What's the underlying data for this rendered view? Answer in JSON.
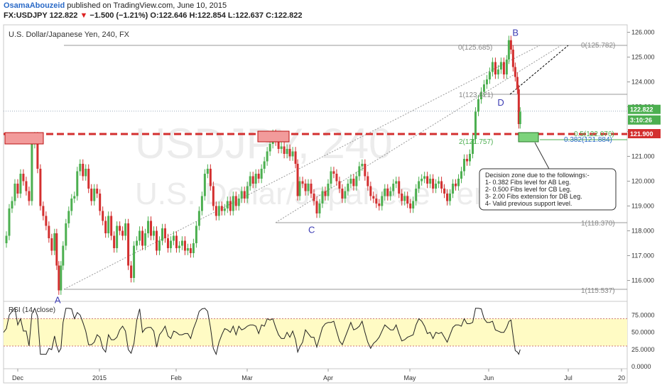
{
  "header": {
    "author": "OsamaAbouzeid",
    "published_text": "published on TradingView.com, June 10, 2015",
    "symbol": "FX:USDJPY",
    "last": "122.822",
    "change": "−1.500 (−1.21%)",
    "ohlc": {
      "o": "O:122.646",
      "h": "H:122.854",
      "l": "L:122.637",
      "c": "C:122.822"
    }
  },
  "chart_data": {
    "type": "line",
    "title": "U.S. Dollar/Japanese Yen, 240, FX",
    "watermark_symbol": "USDJPY, 240",
    "watermark_name": "U.S. Dollar/Japanese Yen",
    "xlabel": "",
    "ylabel": "",
    "price_axis": {
      "ticks": [
        "126.000",
        "125.000",
        "124.000",
        "123.000",
        "122.000",
        "121.000",
        "120.000",
        "119.000",
        "118.000",
        "117.000",
        "116.000"
      ],
      "ylim": [
        115.3,
        126.3
      ]
    },
    "time_axis": [
      "Dec",
      "2015",
      "Feb",
      "Mar",
      "Apr",
      "May",
      "Jun",
      "Jul",
      "20"
    ],
    "price_path": [
      [
        0,
        117.5
      ],
      [
        4,
        117.8
      ],
      [
        8,
        118.9
      ],
      [
        12,
        119.2
      ],
      [
        16,
        119.9
      ],
      [
        20,
        119.5
      ],
      [
        24,
        120.3
      ],
      [
        28,
        120.0
      ],
      [
        32,
        119.6
      ],
      [
        36,
        119.2
      ],
      [
        40,
        121.5
      ],
      [
        44,
        121.8
      ],
      [
        48,
        120.5
      ],
      [
        52,
        119.0
      ],
      [
        56,
        118.6
      ],
      [
        60,
        118.2
      ],
      [
        64,
        117.7
      ],
      [
        68,
        117.2
      ],
      [
        72,
        117.9
      ],
      [
        75,
        116.6
      ],
      [
        78,
        115.6
      ],
      [
        81,
        116.6
      ],
      [
        84,
        117.4
      ],
      [
        88,
        118.3
      ],
      [
        92,
        118.8
      ],
      [
        96,
        119.3
      ],
      [
        100,
        119.4
      ],
      [
        104,
        120.4
      ],
      [
        108,
        120.7
      ],
      [
        112,
        120.2
      ],
      [
        116,
        120.5
      ],
      [
        120,
        119.7
      ],
      [
        124,
        119.2
      ],
      [
        128,
        119.7
      ],
      [
        132,
        119.5
      ],
      [
        136,
        118.8
      ],
      [
        140,
        118.4
      ],
      [
        144,
        117.9
      ],
      [
        148,
        118.6
      ],
      [
        152,
        117.8
      ],
      [
        156,
        117.3
      ],
      [
        160,
        118.2
      ],
      [
        164,
        118.0
      ],
      [
        168,
        117.8
      ],
      [
        172,
        118.3
      ],
      [
        176,
        116.6
      ],
      [
        180,
        116.1
      ],
      [
        184,
        117.4
      ],
      [
        188,
        117.6
      ],
      [
        192,
        118.0
      ],
      [
        196,
        117.4
      ],
      [
        200,
        117.9
      ],
      [
        204,
        118.4
      ],
      [
        208,
        117.8
      ],
      [
        212,
        118.0
      ],
      [
        216,
        117.2
      ],
      [
        220,
        117.6
      ],
      [
        224,
        118.1
      ],
      [
        228,
        117.7
      ],
      [
        232,
        117.3
      ],
      [
        236,
        117.6
      ],
      [
        240,
        117.8
      ],
      [
        244,
        117.3
      ],
      [
        248,
        117.4
      ],
      [
        252,
        117.6
      ],
      [
        256,
        117.2
      ],
      [
        260,
        117.3
      ],
      [
        264,
        117.1
      ],
      [
        268,
        117.5
      ],
      [
        272,
        118.2
      ],
      [
        276,
        118.8
      ],
      [
        280,
        119.4
      ],
      [
        284,
        120.3
      ],
      [
        288,
        120.5
      ],
      [
        292,
        119.8
      ],
      [
        296,
        119.0
      ],
      [
        300,
        118.6
      ],
      [
        304,
        119.0
      ],
      [
        308,
        118.8
      ],
      [
        312,
        118.9
      ],
      [
        316,
        119.2
      ],
      [
        320,
        118.8
      ],
      [
        324,
        119.4
      ],
      [
        328,
        119.0
      ],
      [
        332,
        119.3
      ],
      [
        336,
        119.6
      ],
      [
        340,
        119.3
      ],
      [
        344,
        119.8
      ],
      [
        348,
        120.2
      ],
      [
        352,
        119.9
      ],
      [
        356,
        120.3
      ],
      [
        360,
        120.1
      ],
      [
        364,
        120.5
      ],
      [
        368,
        120.8
      ],
      [
        372,
        121.2
      ],
      [
        376,
        121.5
      ],
      [
        380,
        121.9
      ],
      [
        384,
        121.6
      ],
      [
        388,
        121.3
      ],
      [
        392,
        121.4
      ],
      [
        396,
        121.1
      ],
      [
        400,
        121.3
      ],
      [
        404,
        121.0
      ],
      [
        408,
        121.2
      ],
      [
        412,
        120.7
      ],
      [
        415,
        119.4
      ],
      [
        418,
        120.0
      ],
      [
        422,
        119.9
      ],
      [
        426,
        119.6
      ],
      [
        430,
        119.9
      ],
      [
        434,
        119.5
      ],
      [
        438,
        119.2
      ],
      [
        442,
        118.7
      ],
      [
        446,
        119.1
      ],
      [
        450,
        119.6
      ],
      [
        454,
        119.4
      ],
      [
        458,
        119.9
      ],
      [
        462,
        120.4
      ],
      [
        466,
        120.3
      ],
      [
        470,
        120.0
      ],
      [
        474,
        119.7
      ],
      [
        478,
        119.3
      ],
      [
        482,
        119.6
      ],
      [
        486,
        119.9
      ],
      [
        490,
        120.1
      ],
      [
        494,
        119.8
      ],
      [
        498,
        120.2
      ],
      [
        502,
        120.6
      ],
      [
        506,
        120.7
      ],
      [
        510,
        120.2
      ],
      [
        514,
        119.8
      ],
      [
        518,
        119.4
      ],
      [
        522,
        119.3
      ],
      [
        526,
        119.1
      ],
      [
        530,
        119.0
      ],
      [
        534,
        119.4
      ],
      [
        538,
        119.7
      ],
      [
        542,
        119.4
      ],
      [
        546,
        119.6
      ],
      [
        550,
        119.9
      ],
      [
        554,
        120.0
      ],
      [
        558,
        119.5
      ],
      [
        562,
        119.2
      ],
      [
        566,
        119.4
      ],
      [
        570,
        119.1
      ],
      [
        574,
        118.9
      ],
      [
        578,
        119.2
      ],
      [
        582,
        119.7
      ],
      [
        586,
        120.0
      ],
      [
        590,
        120.1
      ],
      [
        594,
        120.2
      ],
      [
        598,
        119.9
      ],
      [
        602,
        120.1
      ],
      [
        606,
        119.7
      ],
      [
        610,
        119.9
      ],
      [
        614,
        120.0
      ],
      [
        618,
        119.7
      ],
      [
        622,
        119.5
      ],
      [
        626,
        119.2
      ],
      [
        630,
        119.5
      ],
      [
        634,
        119.9
      ],
      [
        638,
        119.8
      ],
      [
        642,
        120.1
      ],
      [
        646,
        120.4
      ],
      [
        650,
        120.9
      ],
      [
        654,
        120.8
      ],
      [
        658,
        121.1
      ],
      [
        662,
        121.7
      ],
      [
        666,
        122.8
      ],
      [
        670,
        123.3
      ],
      [
        674,
        123.6
      ],
      [
        678,
        123.9
      ],
      [
        682,
        124.1
      ],
      [
        686,
        124.4
      ],
      [
        690,
        124.8
      ],
      [
        694,
        124.3
      ],
      [
        698,
        124.5
      ],
      [
        702,
        124.8
      ],
      [
        706,
        124.3
      ],
      [
        710,
        124.9
      ],
      [
        713,
        125.68
      ],
      [
        716,
        125.3
      ],
      [
        719,
        124.6
      ],
      [
        722,
        124.2
      ],
      [
        725,
        123.7
      ],
      [
        727,
        122.3
      ],
      [
        729,
        122.8
      ]
    ],
    "points": [
      {
        "label": "A",
        "x": 78,
        "y": 115.537
      },
      {
        "label": "B",
        "x": 713,
        "y": 125.685
      },
      {
        "label": "C",
        "x": 438,
        "y": 118.37
      },
      {
        "label": "D",
        "x": 723,
        "y": 123.621
      }
    ],
    "fib_levels": [
      {
        "label": "0(125.685)",
        "value": 125.685,
        "color": "#888888"
      },
      {
        "label": "0(125.782)",
        "value": 125.782,
        "color": "#888888"
      },
      {
        "label": "1(123.621)",
        "value": 123.621,
        "color": "#888888"
      },
      {
        "label": "0.5(122.076)",
        "value": 122.076,
        "color": "#4caf50"
      },
      {
        "label": "0.382(121.884)",
        "value": 121.884,
        "color": "#2a6ac7"
      },
      {
        "label": "2(121.757)",
        "value": 121.757,
        "color": "#4caf50"
      },
      {
        "label": "1(118.370)",
        "value": 118.37,
        "color": "#888888"
      },
      {
        "label": "1(115.537)",
        "value": 115.537,
        "color": "#888888"
      }
    ],
    "support_level": 121.9,
    "current_price": 122.822,
    "price_tags": [
      {
        "text": "122.822",
        "color": "#4caf50"
      },
      {
        "text": "3:10:26",
        "color": "#4caf50"
      },
      {
        "text": "121.900",
        "color": "#d32f2f"
      }
    ],
    "annotation": {
      "lines": [
        "Decision zone due to the followings:-",
        "1- 0.382 Fibs level for AB Leg.",
        "2- 0.500 Fibs level for CB Leg.",
        "3- 2.00 Fibs extension for DB Leg.",
        "4- Valid previous support level."
      ]
    },
    "rsi": {
      "label": "RSI (14, close)",
      "ticks": [
        "75.0000",
        "50.0000",
        "25.0000",
        "0.0000"
      ],
      "ylim": [
        0,
        90
      ],
      "upper": 70,
      "lower": 30
    },
    "colors": {
      "up": "#4caf50",
      "down": "#d32f2f",
      "rsi_band": "#fffbc4",
      "support": "#d32f2f"
    }
  }
}
